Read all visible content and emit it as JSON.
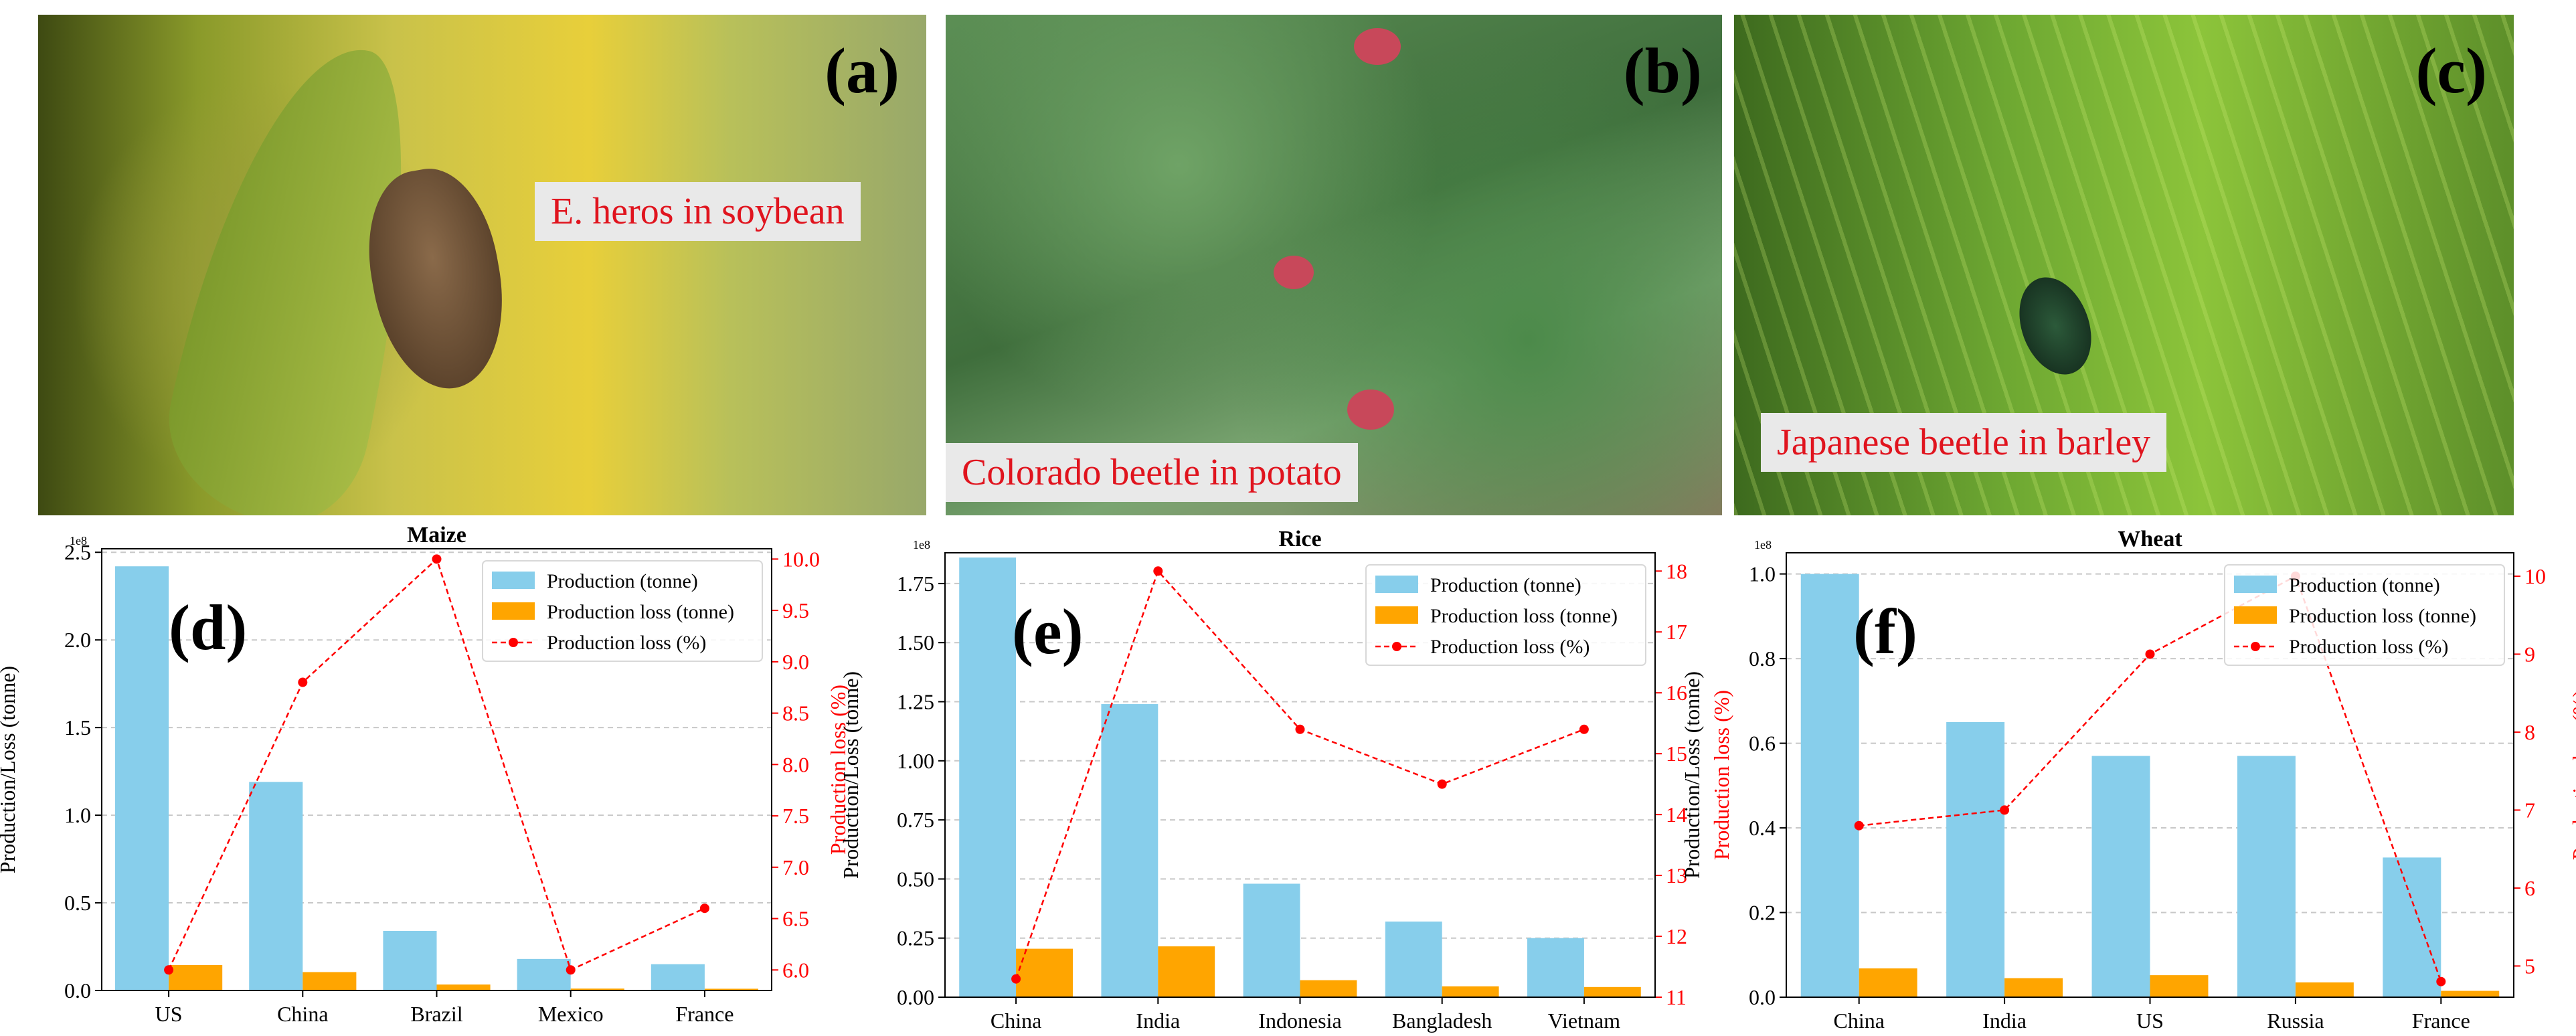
{
  "photos": [
    {
      "letter": "(a)",
      "caption": "E. heros in soybean"
    },
    {
      "letter": "(b)",
      "caption": "Colorado beetle in potato"
    },
    {
      "letter": "(c)",
      "caption": "Japanese beetle in barley"
    }
  ],
  "colors": {
    "production": "#87ceeb",
    "loss": "#ffa500",
    "loss_pct": "#ff0000"
  },
  "chart_data": [
    {
      "type": "bar",
      "title": "Maize",
      "panel": "(d)",
      "scale": "1e8",
      "categories": [
        "US",
        "China",
        "Brazil",
        "Mexico",
        "France"
      ],
      "series": [
        {
          "name": "Production (tonne)",
          "values": [
            2.42,
            1.19,
            0.34,
            0.18,
            0.15
          ]
        },
        {
          "name": "Production loss (tonne)",
          "values": [
            0.145,
            0.105,
            0.034,
            0.011,
            0.01
          ]
        },
        {
          "name": "Production loss (%)",
          "values": [
            6.0,
            8.8,
            10.0,
            6.0,
            6.6
          ]
        }
      ],
      "ylabel": "Production/Loss (tonne)",
      "y2label": "Production loss (%)",
      "ylim": [
        0,
        2.52
      ],
      "y2lim": [
        5.8,
        10.1
      ],
      "yticks": [
        "0.0",
        "0.5",
        "1.0",
        "1.5",
        "2.0",
        "2.5"
      ],
      "y2ticks": [
        "6.0",
        "6.5",
        "7.0",
        "7.5",
        "8.0",
        "8.5",
        "9.0",
        "9.5",
        "10.0"
      ]
    },
    {
      "type": "bar",
      "title": "Rice",
      "panel": "(e)",
      "scale": "1e8",
      "categories": [
        "China",
        "India",
        "Indonesia",
        "Bangladesh",
        "Vietnam"
      ],
      "series": [
        {
          "name": "Production (tonne)",
          "values": [
            1.86,
            1.24,
            0.48,
            0.32,
            0.25
          ]
        },
        {
          "name": "Production loss (tonne)",
          "values": [
            0.205,
            0.215,
            0.072,
            0.046,
            0.043
          ]
        },
        {
          "name": "Production loss (%)",
          "values": [
            11.3,
            18.0,
            15.4,
            14.5,
            15.4
          ]
        }
      ],
      "ylabel": "Production/Loss (tonne)",
      "y2label": "Production loss (%)",
      "ylim": [
        0,
        1.88
      ],
      "y2lim": [
        11.0,
        18.3
      ],
      "yticks": [
        "0.00",
        "0.25",
        "0.50",
        "0.75",
        "1.00",
        "1.25",
        "1.50",
        "1.75"
      ],
      "y2ticks": [
        "11",
        "12",
        "13",
        "14",
        "15",
        "16",
        "17",
        "18"
      ]
    },
    {
      "type": "bar",
      "title": "Wheat",
      "panel": "(f)",
      "scale": "1e8",
      "categories": [
        "China",
        "India",
        "US",
        "Russia",
        "France"
      ],
      "series": [
        {
          "name": "Production (tonne)",
          "values": [
            1.0,
            0.65,
            0.57,
            0.57,
            0.33
          ]
        },
        {
          "name": "Production loss (tonne)",
          "values": [
            0.068,
            0.045,
            0.052,
            0.035,
            0.015
          ]
        },
        {
          "name": "Production loss (%)",
          "values": [
            6.8,
            7.0,
            9.0,
            10.0,
            4.8
          ]
        }
      ],
      "ylabel": "Production/Loss (tonne)",
      "y2label": "Production loss (%)",
      "ylim": [
        0,
        1.05
      ],
      "y2lim": [
        4.6,
        10.3
      ],
      "yticks": [
        "0.0",
        "0.2",
        "0.4",
        "0.6",
        "0.8",
        "1.0"
      ],
      "y2ticks": [
        "5",
        "6",
        "7",
        "8",
        "9",
        "10"
      ]
    }
  ]
}
